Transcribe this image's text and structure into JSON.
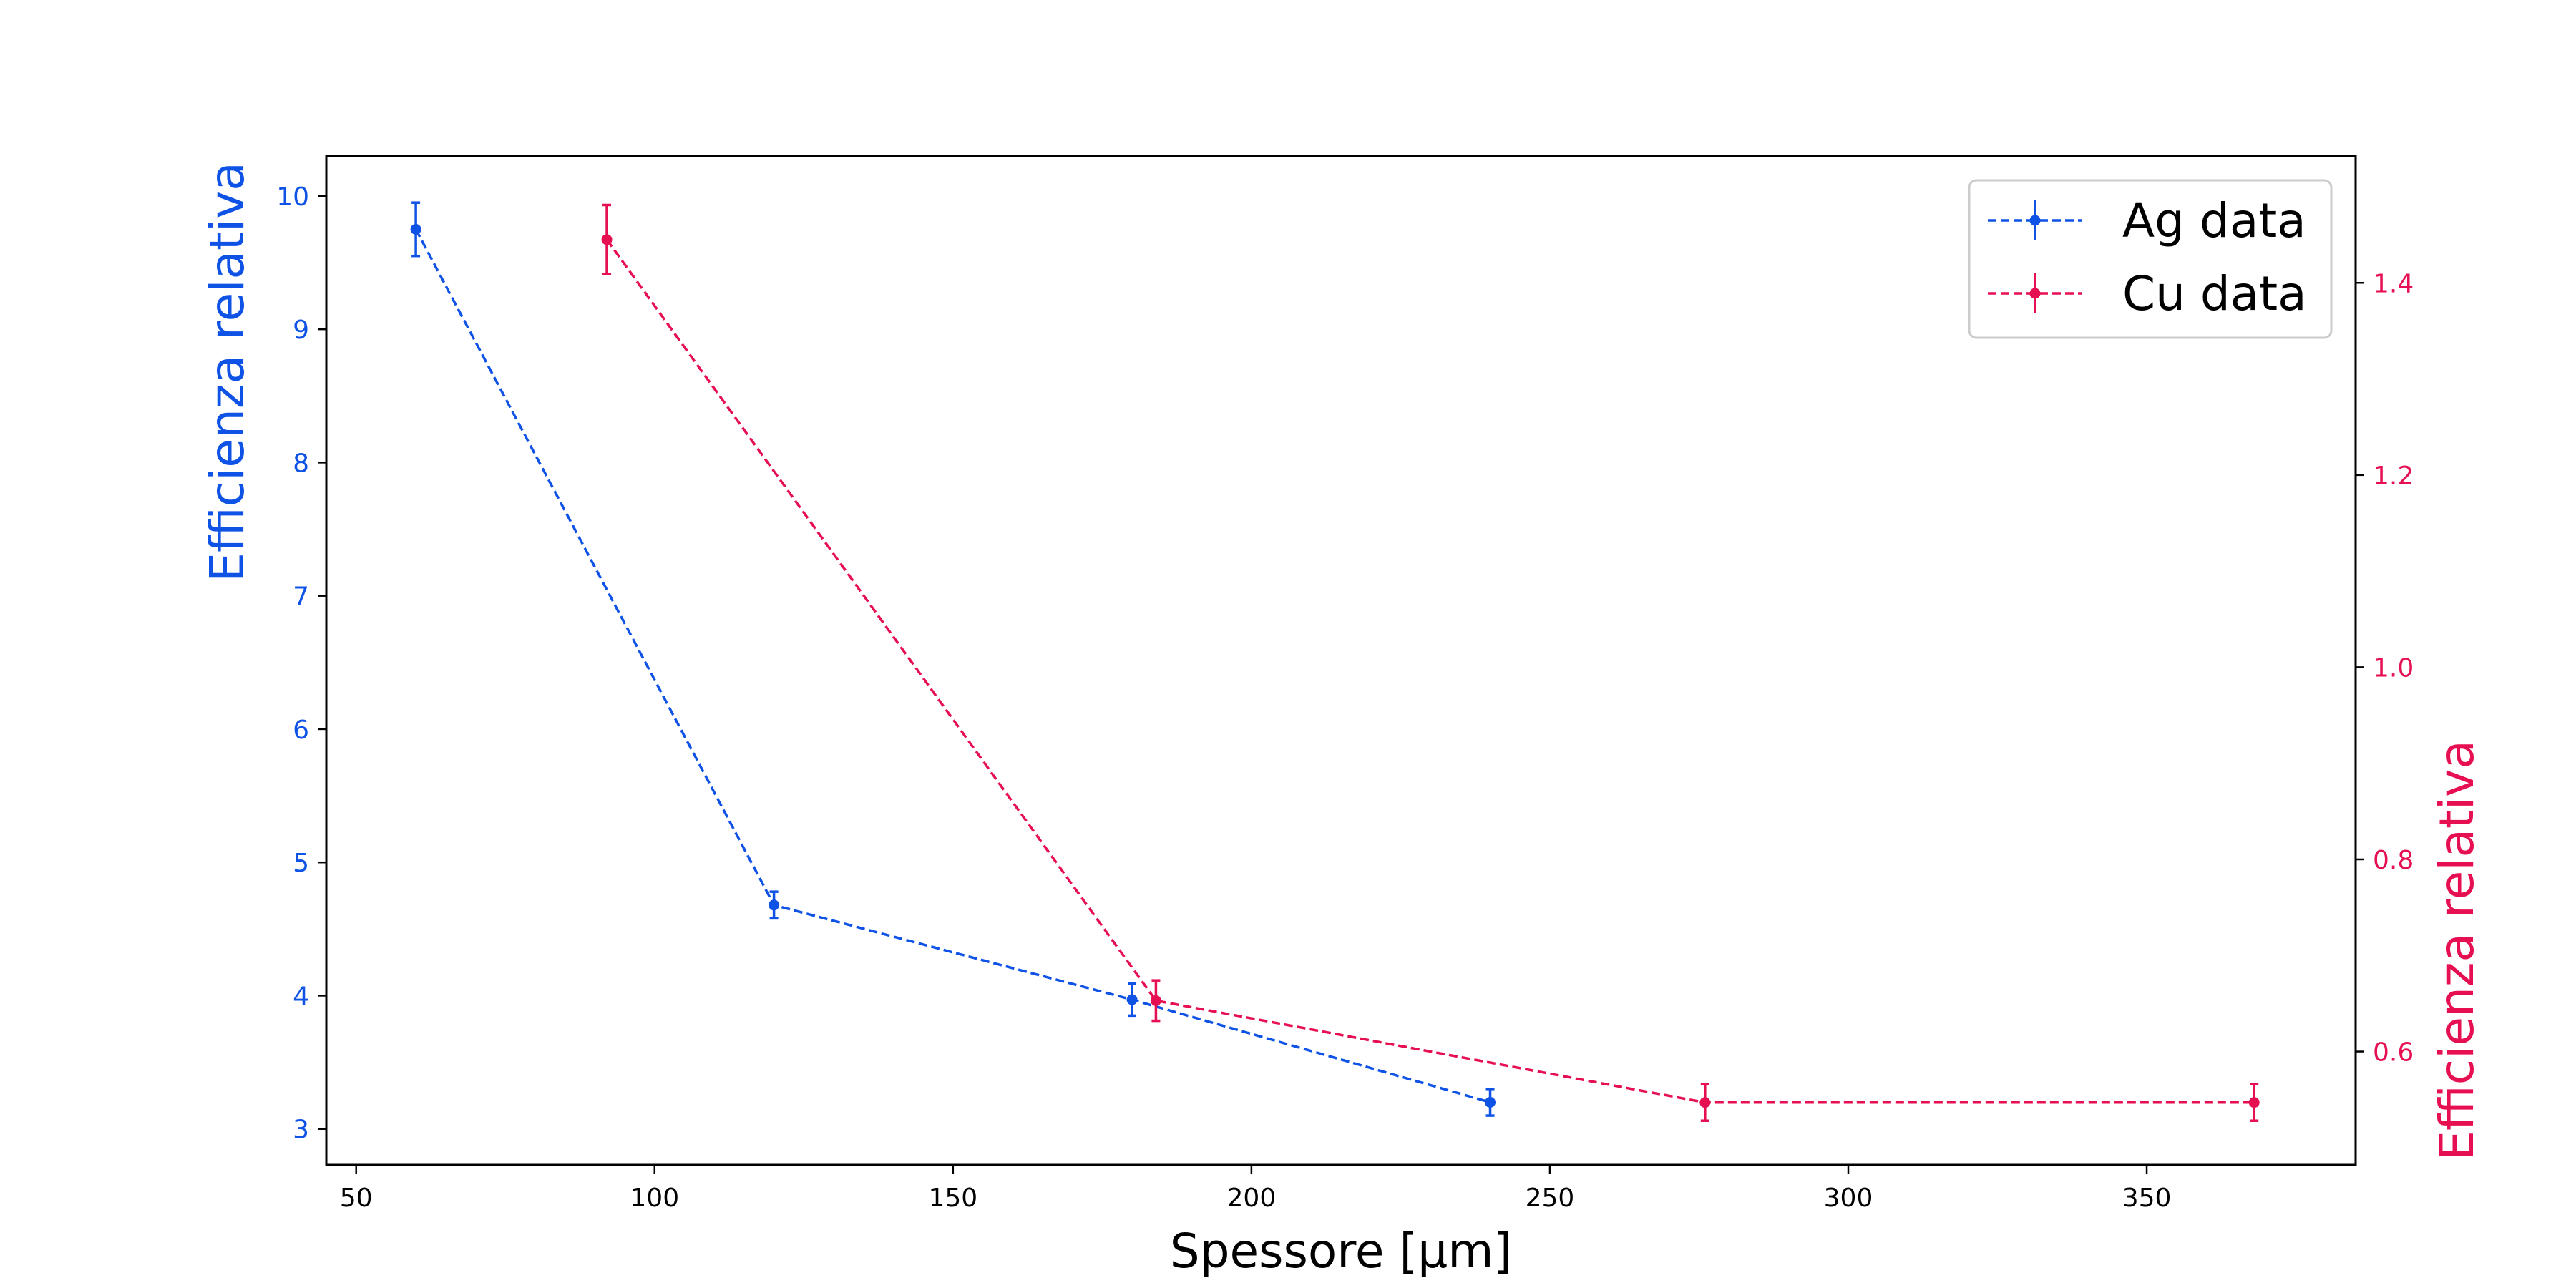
{
  "chart_data": {
    "type": "line",
    "title": "",
    "xlabel": "Spessore [μm]",
    "ylabel_left": "Efficienza relativa",
    "ylabel_right": "Efficienza relativa",
    "xlim": [
      45,
      385
    ],
    "ylim_left": [
      2.73,
      10.3
    ],
    "ylim_right": [
      0.482,
      1.532
    ],
    "x_ticks": [
      50,
      100,
      150,
      200,
      250,
      300,
      350
    ],
    "y_left_ticks": [
      3,
      4,
      5,
      6,
      7,
      8,
      9,
      10
    ],
    "y_right_ticks": [
      0.6,
      0.8,
      1.0,
      1.2,
      1.4
    ],
    "y_right_tick_labels": [
      "0.6",
      "0.8",
      "1.0",
      "1.2",
      "1.4"
    ],
    "grid": false,
    "legend_position": "top-right",
    "line_style": "dashed",
    "colors": {
      "left_axis": "#0f52e6",
      "right_axis": "#e60f52"
    },
    "series": [
      {
        "name": "Ag data",
        "axis": "left",
        "color": "#0f52e6",
        "x": [
          60,
          120,
          180,
          240
        ],
        "y": [
          9.75,
          4.68,
          3.97,
          3.2
        ],
        "yerr": [
          0.2,
          0.1,
          0.12,
          0.1
        ]
      },
      {
        "name": "Cu data",
        "axis": "right",
        "color": "#e60f52",
        "x": [
          92,
          184,
          276,
          368
        ],
        "y": [
          1.445,
          0.653,
          0.547,
          0.547
        ],
        "yerr": [
          0.036,
          0.021,
          0.019,
          0.019
        ]
      }
    ]
  }
}
